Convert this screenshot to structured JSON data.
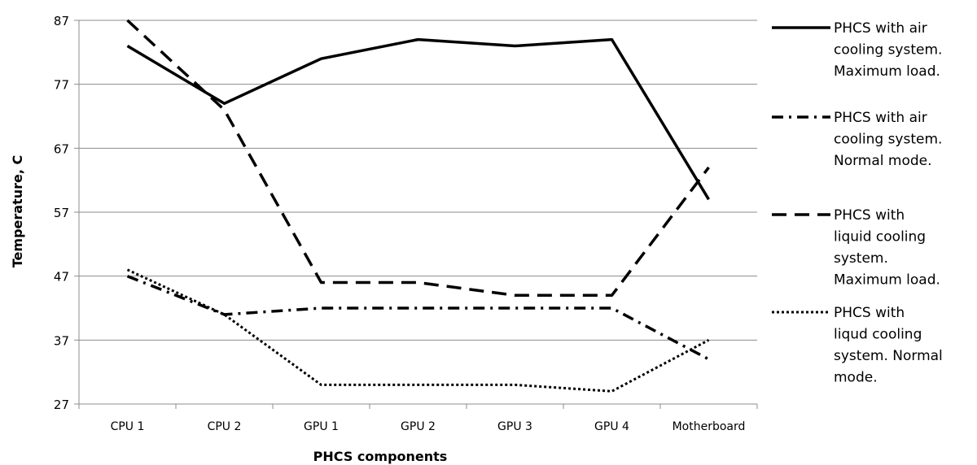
{
  "chart_data": {
    "type": "line",
    "title": "",
    "xlabel": "PHCS components",
    "ylabel": "Temperature, C",
    "categories": [
      "CPU 1",
      "CPU 2",
      "GPU 1",
      "GPU 2",
      "GPU 3",
      "GPU 4",
      "Motherboard"
    ],
    "yticks": [
      27,
      37,
      47,
      57,
      67,
      77,
      87
    ],
    "ylim": [
      27,
      87
    ],
    "grid": true,
    "legend_position": "right",
    "series": [
      {
        "name": "PHCS with air cooling system. Maximum load.",
        "name_lines": [
          "PHCS with air",
          "cooling system.",
          "Maximum load."
        ],
        "style": "solid",
        "values": [
          83,
          74,
          81,
          84,
          83,
          84,
          59
        ]
      },
      {
        "name": "PHCS with air cooling system. Normal mode.",
        "name_lines": [
          "PHCS with air",
          "cooling system.",
          "Normal mode."
        ],
        "style": "dashdot",
        "values": [
          47,
          41,
          42,
          42,
          42,
          42,
          34
        ]
      },
      {
        "name": "PHCS with liquid cooling system. Maximum load.",
        "name_lines": [
          "PHCS with",
          "liquid cooling",
          "system.",
          "Maximum load."
        ],
        "style": "dashed",
        "values": [
          87,
          73,
          46,
          46,
          44,
          44,
          64
        ]
      },
      {
        "name": "PHCS with liqud cooling system. Normal mode.",
        "name_lines": [
          "PHCS with",
          "liqud cooling",
          "system. Normal",
          "mode."
        ],
        "style": "dotted",
        "values": [
          48,
          41,
          30,
          30,
          30,
          29,
          37
        ]
      }
    ]
  }
}
